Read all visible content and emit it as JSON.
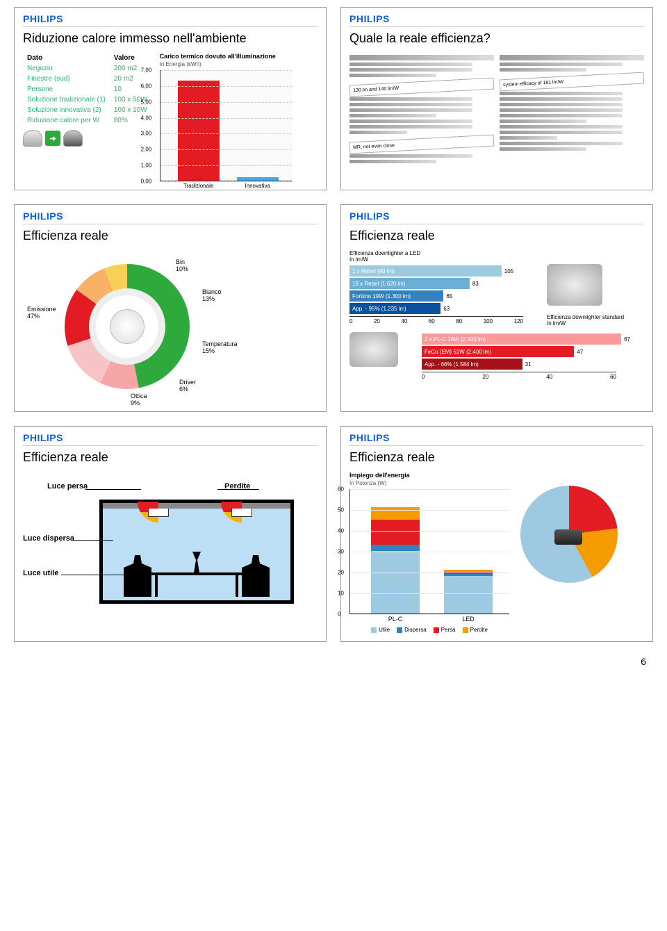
{
  "brand": "PHILIPS",
  "page_number": "6",
  "panels": {
    "p1": {
      "title": "Riduzione calore immesso nell'ambiente",
      "table": {
        "headers": [
          "Dato",
          "Valore"
        ],
        "rows": [
          [
            "Negozio",
            "200 m2"
          ],
          [
            "Finestre (sud)",
            "20 m2"
          ],
          [
            "Persone",
            "10"
          ],
          [
            "Soluzione tradizionale (1)",
            "100 x 50W"
          ],
          [
            "Soluzione innovativa (2)",
            "100 x 10W"
          ],
          [
            "Riduzione calore per W",
            "80%"
          ]
        ]
      },
      "chart": {
        "type": "bar",
        "title": "Carico termico dovuto all'illuminazione",
        "subtitle": "In Energia (kWh)",
        "ylim": [
          0,
          7
        ],
        "ytick_step": 1,
        "yticks": [
          "0,00",
          "1,00",
          "2,00",
          "3,00",
          "4,00",
          "5,00",
          "6,00",
          "7,00"
        ],
        "categories": [
          "Tradizionale",
          "Innovativa"
        ],
        "values": [
          6.3,
          0.2
        ],
        "bar_colors": [
          "#e31b23",
          "#4aa6e8"
        ],
        "background_color": "#fafafa",
        "grid_color": "#cccccc"
      }
    },
    "p2": {
      "title": "Quale la reale efficienza?",
      "highlights": [
        "system efficacy of 181 lm/W"
      ]
    },
    "p3": {
      "title": "Efficienza reale",
      "donut": {
        "type": "donut",
        "segments": [
          {
            "label": "Emissione",
            "value": "47%",
            "color": "#2eaa3d"
          },
          {
            "label": "Bin",
            "value": "10%",
            "color": "#f7a6a8"
          },
          {
            "label": "Bianco",
            "value": "13%",
            "color": "#f8c3c4"
          },
          {
            "label": "Temperatura",
            "value": "15%",
            "color": "#e31b23"
          },
          {
            "label": "Driver",
            "value": "6%",
            "color": "#f7b267"
          },
          {
            "label": "Ottica",
            "value": "9%",
            "color": "#f6d155"
          }
        ]
      }
    },
    "p4": {
      "title": "Efficienza reale",
      "led_title": "Efficienza downlighter a LED",
      "led_sub": "In lm/W",
      "led_bars": {
        "type": "bar_horizontal",
        "xlim": [
          0,
          120
        ],
        "xticks": [
          0,
          20,
          40,
          60,
          80,
          100,
          120
        ],
        "items": [
          {
            "label": "1 x Rebel (90 lm)",
            "value": 105,
            "color": "#9ecae1"
          },
          {
            "label": "18 x Rebel (1.620 lm)",
            "value": 83,
            "color": "#6baed6"
          },
          {
            "label": "Fortimo 19W (1.300 lm)",
            "value": 65,
            "color": "#3182bd"
          },
          {
            "label": "App. - 95% (1.235 lm)",
            "value": 63,
            "color": "#08519c"
          }
        ]
      },
      "std_title": "Efficienza downlighter standard",
      "std_sub": "In lm/W",
      "std_bars": {
        "type": "bar_horizontal",
        "xlim": [
          0,
          60
        ],
        "xticks": [
          0,
          20,
          40,
          60
        ],
        "items": [
          {
            "label": "2 x PL-C 18W (2.400 lm)",
            "value": 67,
            "color": "#fb9a99"
          },
          {
            "label": "FeCu (EM) 51W (2.400 lm)",
            "value": 47,
            "color": "#e31b23"
          },
          {
            "label": "App. - 66% (1.584 lm)",
            "value": 31,
            "color": "#a50f15"
          }
        ]
      }
    },
    "p5": {
      "title": "Efficienza reale",
      "labels": {
        "persa": "Luce persa",
        "perdite": "Perdite",
        "dispersa": "Luce dispersa",
        "utile": "Luce utile"
      },
      "arc_colors": {
        "lost": "#e31b23",
        "useful": "#f7b500"
      },
      "room_bg": "#bcdff5"
    },
    "p6": {
      "title": "Efficienza reale",
      "chart_title": "Impiego dell'energia",
      "chart_sub": "In Potenza (W)",
      "stacked": {
        "type": "stacked_bar",
        "ylim": [
          0,
          60
        ],
        "ytick_step": 10,
        "yticks": [
          0,
          10,
          20,
          30,
          40,
          50,
          60
        ],
        "categories": [
          "PL-C",
          "LED"
        ],
        "series": [
          {
            "name": "Utile",
            "color": "#9ecae1",
            "values": [
              30,
              18
            ]
          },
          {
            "name": "Dispersa",
            "color": "#3182bd",
            "values": [
              3,
              1
            ]
          },
          {
            "name": "Persa",
            "color": "#e31b23",
            "values": [
              12,
              1
            ]
          },
          {
            "name": "Perdite",
            "color": "#f49b00",
            "values": [
              6,
              1
            ]
          }
        ]
      },
      "legend": [
        "Utile",
        "Dispersa",
        "Persa",
        "Perdite"
      ],
      "pie": {
        "type": "pie",
        "segments": [
          {
            "name": "Persa",
            "value": 23,
            "color": "#e31b23"
          },
          {
            "name": "Perdite",
            "value": 19,
            "color": "#f49b00"
          },
          {
            "name": "Utile",
            "value": 58,
            "color": "#9ecae1"
          }
        ]
      }
    }
  }
}
